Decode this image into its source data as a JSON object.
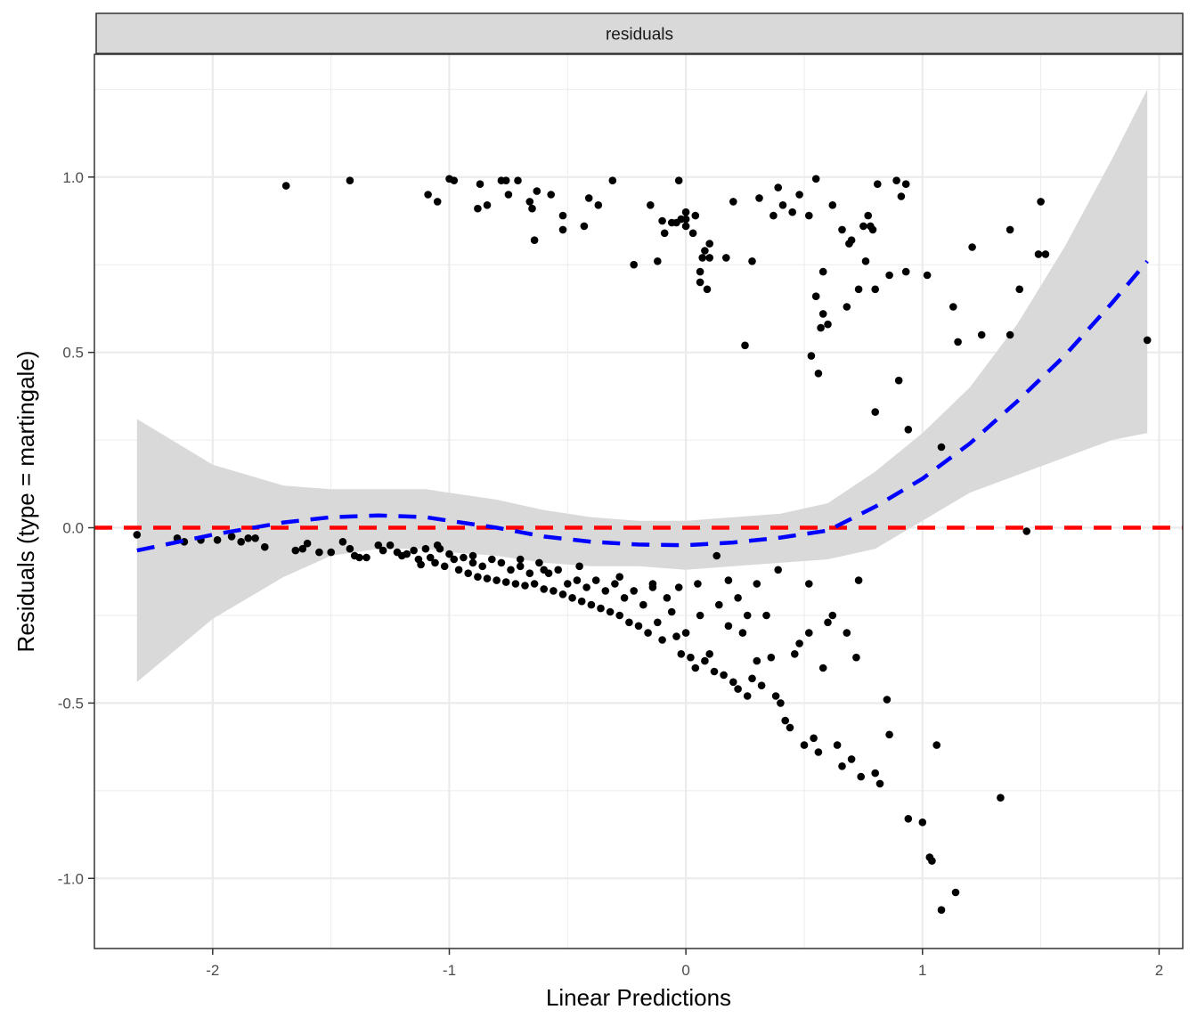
{
  "chart_data": {
    "type": "scatter",
    "facet_label": "residuals",
    "xlabel": "Linear Predictions",
    "ylabel": "Residuals (type = martingale)",
    "xlim": [
      -2.5,
      2.1
    ],
    "ylim": [
      -1.2,
      1.35
    ],
    "x_ticks": [
      -2,
      -1,
      0,
      1,
      2
    ],
    "x_tick_labels": [
      "-2",
      "-1",
      "0",
      "1",
      "2"
    ],
    "y_ticks": [
      -1.0,
      -0.5,
      0.0,
      0.5,
      1.0
    ],
    "y_tick_labels": [
      "-1.0",
      "-0.5",
      "0.0",
      "0.5",
      "1.0"
    ],
    "grid": true,
    "reference_line": {
      "y": 0,
      "color": "#ff0000",
      "style": "dashed"
    },
    "smooth": {
      "color": "#0000ff",
      "style": "dashed",
      "x": [
        -2.32,
        -2.0,
        -1.7,
        -1.5,
        -1.3,
        -1.1,
        -1.0,
        -0.8,
        -0.6,
        -0.4,
        -0.2,
        0.0,
        0.2,
        0.4,
        0.6,
        0.8,
        1.0,
        1.2,
        1.4,
        1.6,
        1.8,
        1.95
      ],
      "y": [
        -0.065,
        -0.02,
        0.015,
        0.03,
        0.035,
        0.03,
        0.02,
        0.0,
        -0.025,
        -0.04,
        -0.048,
        -0.05,
        -0.042,
        -0.028,
        -0.008,
        0.06,
        0.14,
        0.24,
        0.36,
        0.49,
        0.64,
        0.76
      ],
      "ci_lower": [
        -0.44,
        -0.26,
        -0.14,
        -0.08,
        -0.06,
        -0.06,
        -0.07,
        -0.08,
        -0.1,
        -0.11,
        -0.11,
        -0.12,
        -0.11,
        -0.1,
        -0.09,
        -0.06,
        0.02,
        0.1,
        0.15,
        0.2,
        0.25,
        0.27
      ],
      "ci_upper": [
        0.31,
        0.18,
        0.12,
        0.11,
        0.11,
        0.11,
        0.1,
        0.08,
        0.05,
        0.03,
        0.02,
        0.02,
        0.03,
        0.04,
        0.07,
        0.16,
        0.27,
        0.4,
        0.58,
        0.8,
        1.05,
        1.25
      ],
      "fill": "#d9d9d9"
    },
    "point_color": "#000000",
    "points": [
      [
        -1.69,
        0.975
      ],
      [
        -1.42,
        0.99
      ],
      [
        -1.09,
        0.95
      ],
      [
        -1.05,
        0.93
      ],
      [
        -1.0,
        0.995
      ],
      [
        -0.98,
        0.99
      ],
      [
        -0.88,
        0.91
      ],
      [
        -0.87,
        0.98
      ],
      [
        -0.84,
        0.92
      ],
      [
        -0.78,
        0.99
      ],
      [
        -0.76,
        0.99
      ],
      [
        -0.75,
        0.95
      ],
      [
        -0.71,
        0.99
      ],
      [
        -0.66,
        0.93
      ],
      [
        -0.65,
        0.91
      ],
      [
        -0.64,
        0.82
      ],
      [
        -0.63,
        0.96
      ],
      [
        -0.57,
        0.95
      ],
      [
        -0.52,
        0.89
      ],
      [
        -0.52,
        0.85
      ],
      [
        -0.43,
        0.86
      ],
      [
        -0.41,
        0.94
      ],
      [
        -0.37,
        0.92
      ],
      [
        -0.31,
        0.99
      ],
      [
        -0.22,
        0.75
      ],
      [
        -0.15,
        0.92
      ],
      [
        -0.12,
        0.76
      ],
      [
        -0.1,
        0.875
      ],
      [
        -0.09,
        0.84
      ],
      [
        -0.06,
        0.87
      ],
      [
        -0.04,
        0.87
      ],
      [
        -0.03,
        0.99
      ],
      [
        -0.02,
        0.88
      ],
      [
        0.0,
        0.86
      ],
      [
        0.0,
        0.88
      ],
      [
        0.0,
        0.9
      ],
      [
        0.03,
        0.84
      ],
      [
        0.04,
        0.89
      ],
      [
        0.06,
        0.73
      ],
      [
        0.06,
        0.7
      ],
      [
        0.07,
        0.77
      ],
      [
        0.08,
        0.79
      ],
      [
        0.09,
        0.68
      ],
      [
        0.1,
        0.81
      ],
      [
        0.1,
        0.77
      ],
      [
        0.17,
        0.77
      ],
      [
        0.2,
        0.93
      ],
      [
        0.25,
        0.52
      ],
      [
        0.28,
        0.76
      ],
      [
        0.31,
        0.94
      ],
      [
        0.37,
        0.89
      ],
      [
        0.39,
        0.97
      ],
      [
        0.41,
        0.92
      ],
      [
        0.45,
        0.9
      ],
      [
        0.48,
        0.95
      ],
      [
        0.52,
        0.89
      ],
      [
        0.53,
        0.49
      ],
      [
        0.55,
        0.995
      ],
      [
        0.55,
        0.66
      ],
      [
        0.56,
        0.44
      ],
      [
        0.57,
        0.57
      ],
      [
        0.58,
        0.61
      ],
      [
        0.58,
        0.73
      ],
      [
        0.6,
        0.58
      ],
      [
        0.62,
        0.92
      ],
      [
        0.66,
        0.85
      ],
      [
        0.68,
        0.63
      ],
      [
        0.69,
        0.81
      ],
      [
        0.7,
        0.82
      ],
      [
        0.73,
        0.68
      ],
      [
        0.75,
        0.86
      ],
      [
        0.76,
        0.76
      ],
      [
        0.77,
        0.89
      ],
      [
        0.78,
        0.86
      ],
      [
        0.79,
        0.85
      ],
      [
        0.8,
        0.68
      ],
      [
        0.8,
        0.33
      ],
      [
        0.81,
        0.98
      ],
      [
        0.86,
        0.72
      ],
      [
        0.89,
        0.99
      ],
      [
        0.9,
        0.42
      ],
      [
        0.91,
        0.945
      ],
      [
        0.93,
        0.98
      ],
      [
        0.93,
        0.73
      ],
      [
        0.94,
        0.28
      ],
      [
        1.02,
        0.72
      ],
      [
        1.08,
        0.23
      ],
      [
        1.13,
        0.63
      ],
      [
        1.15,
        0.53
      ],
      [
        1.21,
        0.8
      ],
      [
        1.25,
        0.55
      ],
      [
        1.37,
        0.85
      ],
      [
        1.37,
        0.55
      ],
      [
        1.41,
        0.68
      ],
      [
        1.49,
        0.78
      ],
      [
        1.5,
        0.93
      ],
      [
        1.52,
        0.78
      ],
      [
        1.95,
        0.535
      ],
      [
        -2.32,
        -0.02
      ],
      [
        -2.15,
        -0.03
      ],
      [
        -2.12,
        -0.04
      ],
      [
        -2.05,
        -0.035
      ],
      [
        -1.98,
        -0.035
      ],
      [
        -1.92,
        -0.025
      ],
      [
        -1.88,
        -0.04
      ],
      [
        -1.85,
        -0.03
      ],
      [
        -1.82,
        -0.03
      ],
      [
        -1.78,
        -0.055
      ],
      [
        -1.65,
        -0.065
      ],
      [
        -1.62,
        -0.06
      ],
      [
        -1.6,
        -0.045
      ],
      [
        -1.55,
        -0.07
      ],
      [
        -1.5,
        -0.07
      ],
      [
        -1.45,
        -0.04
      ],
      [
        -1.42,
        -0.06
      ],
      [
        -1.4,
        -0.08
      ],
      [
        -1.38,
        -0.085
      ],
      [
        -1.35,
        -0.085
      ],
      [
        -1.3,
        -0.05
      ],
      [
        -1.28,
        -0.065
      ],
      [
        -1.25,
        -0.05
      ],
      [
        -1.22,
        -0.07
      ],
      [
        -1.2,
        -0.08
      ],
      [
        -1.18,
        -0.075
      ],
      [
        -1.15,
        -0.065
      ],
      [
        -1.13,
        -0.09
      ],
      [
        -1.12,
        -0.105
      ],
      [
        -1.1,
        -0.06
      ],
      [
        -1.08,
        -0.085
      ],
      [
        -1.06,
        -0.1
      ],
      [
        -1.04,
        -0.06
      ],
      [
        -1.02,
        -0.11
      ],
      [
        -1.0,
        -0.075
      ],
      [
        -0.98,
        -0.09
      ],
      [
        -0.96,
        -0.12
      ],
      [
        -0.94,
        -0.085
      ],
      [
        -0.92,
        -0.13
      ],
      [
        -0.9,
        -0.1
      ],
      [
        -0.88,
        -0.14
      ],
      [
        -0.86,
        -0.11
      ],
      [
        -0.84,
        -0.145
      ],
      [
        -0.82,
        -0.09
      ],
      [
        -0.8,
        -0.15
      ],
      [
        -0.78,
        -0.1
      ],
      [
        -0.76,
        -0.155
      ],
      [
        -0.74,
        -0.12
      ],
      [
        -0.72,
        -0.16
      ],
      [
        -0.7,
        -0.11
      ],
      [
        -0.68,
        -0.165
      ],
      [
        -0.66,
        -0.13
      ],
      [
        -0.64,
        -0.16
      ],
      [
        -0.62,
        -0.1
      ],
      [
        -0.6,
        -0.175
      ],
      [
        -0.58,
        -0.13
      ],
      [
        -0.56,
        -0.18
      ],
      [
        -0.54,
        -0.12
      ],
      [
        -0.52,
        -0.19
      ],
      [
        -0.5,
        -0.16
      ],
      [
        -0.48,
        -0.2
      ],
      [
        -0.46,
        -0.15
      ],
      [
        -0.44,
        -0.21
      ],
      [
        -0.42,
        -0.17
      ],
      [
        -0.4,
        -0.22
      ],
      [
        -0.38,
        -0.15
      ],
      [
        -0.36,
        -0.23
      ],
      [
        -0.34,
        -0.18
      ],
      [
        -0.32,
        -0.24
      ],
      [
        -0.3,
        -0.16
      ],
      [
        -0.28,
        -0.25
      ],
      [
        -0.26,
        -0.2
      ],
      [
        -0.24,
        -0.27
      ],
      [
        -0.22,
        -0.18
      ],
      [
        -0.2,
        -0.28
      ],
      [
        -0.18,
        -0.22
      ],
      [
        -0.16,
        -0.3
      ],
      [
        -0.14,
        -0.17
      ],
      [
        -0.12,
        -0.27
      ],
      [
        -0.1,
        -0.32
      ],
      [
        -0.08,
        -0.2
      ],
      [
        -0.06,
        -0.24
      ],
      [
        -0.04,
        -0.31
      ],
      [
        -0.02,
        -0.36
      ],
      [
        0.0,
        -0.3
      ],
      [
        0.02,
        -0.37
      ],
      [
        0.04,
        -0.4
      ],
      [
        0.06,
        -0.25
      ],
      [
        0.08,
        -0.38
      ],
      [
        0.1,
        -0.36
      ],
      [
        0.12,
        -0.41
      ],
      [
        0.14,
        -0.22
      ],
      [
        0.16,
        -0.42
      ],
      [
        0.18,
        -0.28
      ],
      [
        0.2,
        -0.44
      ],
      [
        0.22,
        -0.46
      ],
      [
        0.24,
        -0.3
      ],
      [
        0.26,
        -0.48
      ],
      [
        0.28,
        -0.43
      ],
      [
        0.3,
        -0.38
      ],
      [
        0.32,
        -0.45
      ],
      [
        0.34,
        -0.25
      ],
      [
        0.36,
        -0.37
      ],
      [
        0.38,
        -0.48
      ],
      [
        0.4,
        -0.5
      ],
      [
        0.42,
        -0.55
      ],
      [
        0.44,
        -0.57
      ],
      [
        0.46,
        -0.36
      ],
      [
        0.48,
        -0.33
      ],
      [
        0.5,
        -0.62
      ],
      [
        0.52,
        -0.3
      ],
      [
        0.54,
        -0.6
      ],
      [
        0.56,
        -0.64
      ],
      [
        0.58,
        -0.4
      ],
      [
        0.6,
        -0.27
      ],
      [
        0.62,
        -0.25
      ],
      [
        0.64,
        -0.62
      ],
      [
        0.66,
        -0.68
      ],
      [
        0.68,
        -0.3
      ],
      [
        0.7,
        -0.66
      ],
      [
        0.72,
        -0.37
      ],
      [
        0.74,
        -0.71
      ],
      [
        0.8,
        -0.7
      ],
      [
        0.82,
        -0.73
      ],
      [
        0.85,
        -0.49
      ],
      [
        0.86,
        -0.59
      ],
      [
        0.94,
        -0.83
      ],
      [
        1.0,
        -0.84
      ],
      [
        1.03,
        -0.94
      ],
      [
        1.04,
        -0.95
      ],
      [
        1.06,
        -0.62
      ],
      [
        1.08,
        -1.09
      ],
      [
        1.14,
        -1.04
      ],
      [
        1.33,
        -0.77
      ],
      [
        1.44,
        -0.01
      ],
      [
        0.13,
        -0.08
      ],
      [
        0.39,
        -0.12
      ],
      [
        0.73,
        -0.15
      ],
      [
        0.52,
        -0.16
      ],
      [
        -0.14,
        -0.16
      ],
      [
        -0.28,
        -0.14
      ],
      [
        -0.45,
        -0.11
      ],
      [
        -0.6,
        -0.12
      ],
      [
        -0.7,
        -0.09
      ],
      [
        -0.9,
        -0.08
      ],
      [
        -1.05,
        -0.05
      ],
      [
        0.22,
        -0.2
      ],
      [
        0.26,
        -0.25
      ],
      [
        0.3,
        -0.16
      ],
      [
        0.18,
        -0.15
      ],
      [
        0.05,
        -0.16
      ],
      [
        -0.03,
        -0.17
      ]
    ]
  }
}
